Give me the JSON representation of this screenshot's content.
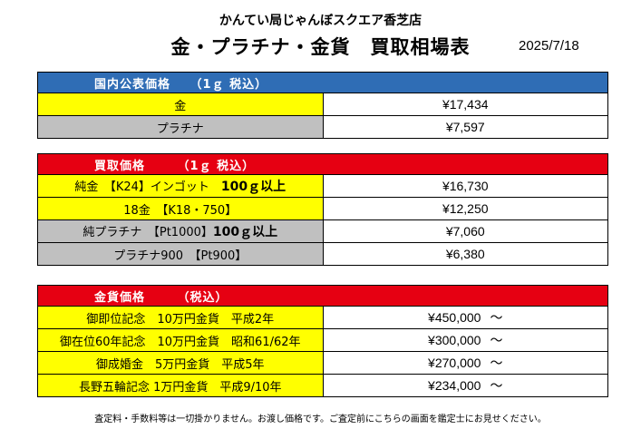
{
  "header": {
    "store": "かんてい局じゃんぼスクエア香芝店",
    "title": "金・プラチナ・金貨　買取相場表",
    "date": "2025/7/18"
  },
  "public_price": {
    "heading": "国内公表価格　　（1ｇ 税込）",
    "rows": [
      {
        "label": "金",
        "price": "¥17,434"
      },
      {
        "label": "プラチナ",
        "price": "¥7,597"
      }
    ]
  },
  "buy_price": {
    "heading": "買取価格　　　（1ｇ 税込）",
    "rows": [
      {
        "label": "純金　【K24】インゴット　",
        "bold": "100ｇ以上",
        "price": "¥16,730"
      },
      {
        "label": "18金　【K18・750】",
        "price": "¥12,250"
      },
      {
        "label": "純プラチナ　【Pt1000】",
        "bold": "100ｇ以上",
        "price": "¥7,060"
      },
      {
        "label": "プラチナ900　【Pt900】",
        "price": "¥6,380"
      }
    ]
  },
  "coin_price": {
    "heading": "金貨価格　　　（税込）",
    "tilde": "～",
    "rows": [
      {
        "label": "御即位記念　10万円金貨　平成2年",
        "price": "¥450,000"
      },
      {
        "label": "御在位60年記念　10万円金貨　昭和61/62年",
        "price": "¥300,000"
      },
      {
        "label": "御成婚金　5万円金貨　平成5年",
        "price": "¥270,000"
      },
      {
        "label": "長野五輪記念 1万円金貨　平成9/10年",
        "price": "¥234,000"
      }
    ]
  },
  "footer": "査定料・手数料等は一切掛かりません。お渡し価格です。ご査定前にこちらの画面を鑑定士にお見せください。",
  "colors": {
    "blue": "#2f6db5",
    "red": "#e60012",
    "yellow": "#ffff00",
    "gray": "#c0c0c0"
  }
}
